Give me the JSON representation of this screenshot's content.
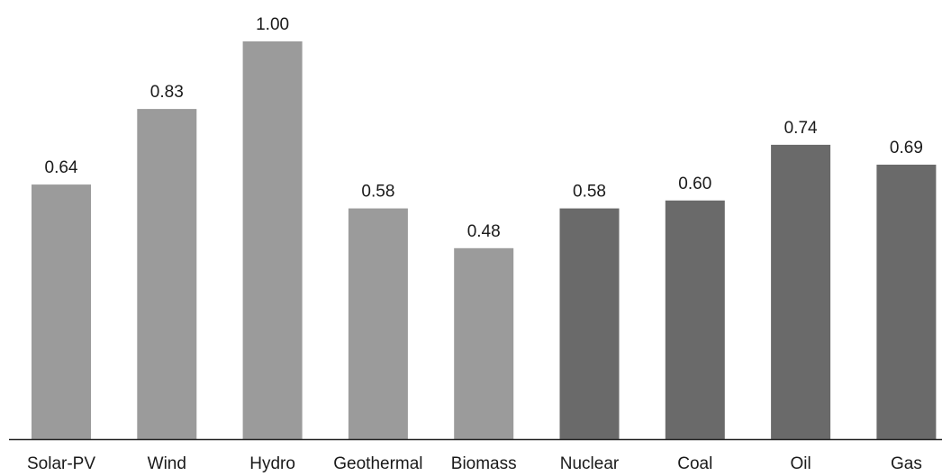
{
  "chart_data": {
    "type": "bar",
    "categories": [
      "Solar-PV",
      "Wind",
      "Hydro",
      "Geothermal",
      "Biomass",
      "Nuclear",
      "Coal",
      "Oil",
      "Gas"
    ],
    "values": [
      0.64,
      0.83,
      1.0,
      0.58,
      0.48,
      0.58,
      0.6,
      0.74,
      0.69
    ],
    "data_labels": [
      "0.64",
      "0.83",
      "1.00",
      "0.58",
      "0.48",
      "0.58",
      "0.60",
      "0.74",
      "0.69"
    ],
    "bar_colors": [
      "#9b9b9b",
      "#9b9b9b",
      "#9b9b9b",
      "#9b9b9b",
      "#9b9b9b",
      "#6a6a6a",
      "#6a6a6a",
      "#6a6a6a",
      "#6a6a6a"
    ],
    "axis_color": "#222222",
    "title": "",
    "xlabel": "",
    "ylabel": "",
    "ylim": [
      0,
      1.0
    ],
    "grid": false,
    "legend": "none"
  }
}
